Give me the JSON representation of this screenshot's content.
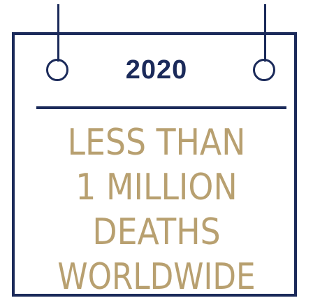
{
  "calendar": {
    "year": "2020",
    "lines": [
      "LESS THAN",
      "1 MILLION",
      "DEATHS",
      "WORLDWIDE"
    ]
  },
  "colors": {
    "navy": "#1b2a5a",
    "gold": "#b8a070"
  }
}
